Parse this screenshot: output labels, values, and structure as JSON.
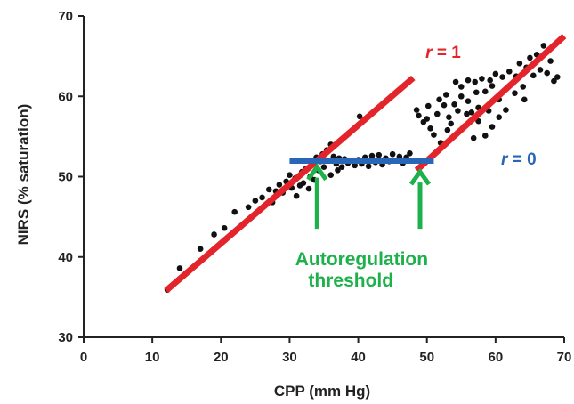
{
  "chart_data": {
    "type": "scatter",
    "xlabel": "CPP (mm Hg)",
    "ylabel": "NIRS (% saturation)",
    "xlim": [
      0,
      70
    ],
    "ylim": [
      30,
      70
    ],
    "xticks": [
      0,
      10,
      20,
      30,
      40,
      50,
      60,
      70
    ],
    "yticks": [
      30,
      40,
      50,
      60,
      70
    ],
    "grid": false,
    "points": [
      [
        12.2,
        35.9
      ],
      [
        14.0,
        38.6
      ],
      [
        17.0,
        41.0
      ],
      [
        19.0,
        42.8
      ],
      [
        20.5,
        43.6
      ],
      [
        22.0,
        45.6
      ],
      [
        24.0,
        46.2
      ],
      [
        25.0,
        47.0
      ],
      [
        26.0,
        47.4
      ],
      [
        27.0,
        48.4
      ],
      [
        27.5,
        46.8
      ],
      [
        28.0,
        48.2
      ],
      [
        28.5,
        49.0
      ],
      [
        29.0,
        48.0
      ],
      [
        29.5,
        49.4
      ],
      [
        30.0,
        50.2
      ],
      [
        30.3,
        48.6
      ],
      [
        30.8,
        49.8
      ],
      [
        31.0,
        47.6
      ],
      [
        31.5,
        48.9
      ],
      [
        31.8,
        50.6
      ],
      [
        32.0,
        49.2
      ],
      [
        32.4,
        51.0
      ],
      [
        32.8,
        48.5
      ],
      [
        33.0,
        50.0
      ],
      [
        33.3,
        51.6
      ],
      [
        33.6,
        49.6
      ],
      [
        33.9,
        52.4
      ],
      [
        34.2,
        50.8
      ],
      [
        34.5,
        51.9
      ],
      [
        34.8,
        52.8
      ],
      [
        35.0,
        51.2
      ],
      [
        35.4,
        53.3
      ],
      [
        35.8,
        52.0
      ],
      [
        36.0,
        54.0
      ],
      [
        36.4,
        52.5
      ],
      [
        36.8,
        51.6
      ],
      [
        37.2,
        52.3
      ],
      [
        37.6,
        51.2
      ],
      [
        38.0,
        52.2
      ],
      [
        38.5,
        51.7
      ],
      [
        39.0,
        52.0
      ],
      [
        39.5,
        51.4
      ],
      [
        40.0,
        52.1
      ],
      [
        40.5,
        51.6
      ],
      [
        41.0,
        52.4
      ],
      [
        41.5,
        51.3
      ],
      [
        42.0,
        52.6
      ],
      [
        42.5,
        51.8
      ],
      [
        43.0,
        52.7
      ],
      [
        43.5,
        51.5
      ],
      [
        44.0,
        52.3
      ],
      [
        44.5,
        51.9
      ],
      [
        45.0,
        52.8
      ],
      [
        45.5,
        52.0
      ],
      [
        46.0,
        52.5
      ],
      [
        46.5,
        51.7
      ],
      [
        47.0,
        52.4
      ],
      [
        47.5,
        52.9
      ],
      [
        40.2,
        57.5
      ],
      [
        36.0,
        50.2
      ],
      [
        37.0,
        50.8
      ],
      [
        48.5,
        58.3
      ],
      [
        48.8,
        57.6
      ],
      [
        49.5,
        56.8
      ],
      [
        50.0,
        57.2
      ],
      [
        50.5,
        56.0
      ],
      [
        51.0,
        55.2
      ],
      [
        51.5,
        57.8
      ],
      [
        52.0,
        54.2
      ],
      [
        52.5,
        58.9
      ],
      [
        53.0,
        55.8
      ],
      [
        53.5,
        56.6
      ],
      [
        54.0,
        59.0
      ],
      [
        54.5,
        58.2
      ],
      [
        55.0,
        60.0
      ],
      [
        55.5,
        56.3
      ],
      [
        56.0,
        59.4
      ],
      [
        56.5,
        58.0
      ],
      [
        57.0,
        61.8
      ],
      [
        57.5,
        56.9
      ],
      [
        58.0,
        62.2
      ],
      [
        58.5,
        60.6
      ],
      [
        59.0,
        58.2
      ],
      [
        59.5,
        61.3
      ],
      [
        60.0,
        62.8
      ],
      [
        60.5,
        59.6
      ],
      [
        61.0,
        62.4
      ],
      [
        61.5,
        60.9
      ],
      [
        62.0,
        63.1
      ],
      [
        62.5,
        61.6
      ],
      [
        63.0,
        62.5
      ],
      [
        63.5,
        64.1
      ],
      [
        64.0,
        61.2
      ],
      [
        64.5,
        63.6
      ],
      [
        65.0,
        64.8
      ],
      [
        65.5,
        62.6
      ],
      [
        66.0,
        65.2
      ],
      [
        66.5,
        63.3
      ],
      [
        67.0,
        66.3
      ],
      [
        67.5,
        62.9
      ],
      [
        68.0,
        64.4
      ],
      [
        68.5,
        61.9
      ],
      [
        69.0,
        62.4
      ],
      [
        55.0,
        61.2
      ],
      [
        56.0,
        62.0
      ],
      [
        57.5,
        58.6
      ],
      [
        58.5,
        55.1
      ],
      [
        59.5,
        56.2
      ],
      [
        60.5,
        57.4
      ],
      [
        52.8,
        60.2
      ],
      [
        54.2,
        61.8
      ],
      [
        56.8,
        54.8
      ],
      [
        61.5,
        58.3
      ],
      [
        62.8,
        60.4
      ],
      [
        64.2,
        59.6
      ],
      [
        50.2,
        58.8
      ],
      [
        51.8,
        59.6
      ],
      [
        53.2,
        57.4
      ],
      [
        55.8,
        57.8
      ],
      [
        57.2,
        60.5
      ],
      [
        59.2,
        62.0
      ]
    ],
    "lines": [
      {
        "name": "r = 1",
        "color": "#e3252b",
        "x": [
          12,
          48
        ],
        "y": [
          35.8,
          62.3
        ]
      },
      {
        "name": "r = 1",
        "color": "#e3252b",
        "x": [
          48.5,
          70
        ],
        "y": [
          50.8,
          67.5
        ]
      },
      {
        "name": "r = 0",
        "color": "#2a66b8",
        "x": [
          30,
          51
        ],
        "y": [
          52.0,
          52.0
        ]
      }
    ],
    "arrows": [
      {
        "x": 34,
        "y_from": 43.5,
        "y_to": 51.2,
        "color": "#1db04b"
      },
      {
        "x": 49,
        "y_from": 43.5,
        "y_to": 50.6,
        "color": "#1db04b"
      }
    ],
    "annotations": {
      "r1_label": {
        "italic": "r",
        "rest": " = 1",
        "color": "#e3252b",
        "x": 49.8,
        "y": 64.8
      },
      "r0_label": {
        "italic": "r",
        "rest": " = 0",
        "color": "#2a66b8",
        "x": 60.8,
        "y": 51.5
      },
      "threshold_line1": "Autoregulation",
      "threshold_line2": "threshold",
      "threshold_color": "#1db04b",
      "threshold_x": 40.5,
      "threshold_y1": 39.0,
      "threshold_y2": 36.3
    },
    "point_color": "#111111"
  }
}
